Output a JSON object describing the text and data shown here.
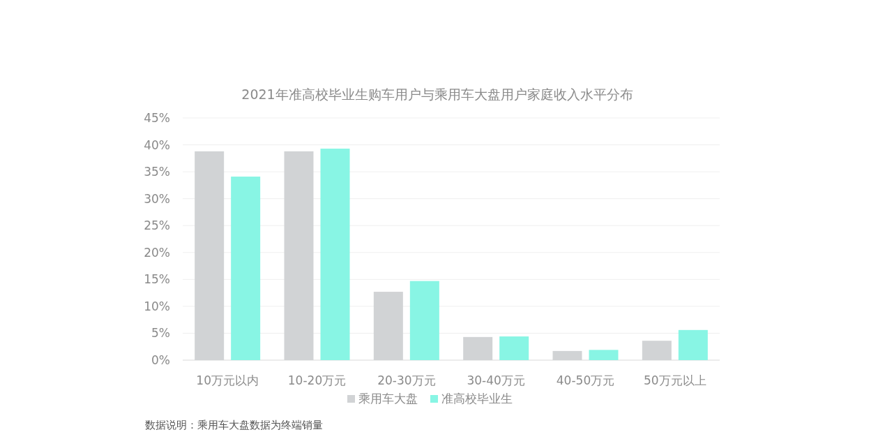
{
  "chart_data": {
    "type": "bar",
    "title": "2021年准高校毕业生购车用户与乘用车大盘用户家庭收入水平分布",
    "categories": [
      "10万元以内",
      "10-20万元",
      "20-30万元",
      "30-40万元",
      "40-50万元",
      "50万元以上"
    ],
    "series": [
      {
        "name": "乘用车大盘",
        "color": "#d1d3d5",
        "values": [
          38.8,
          38.8,
          12.7,
          4.3,
          1.7,
          3.6
        ]
      },
      {
        "name": "准高校毕业生",
        "color": "#88f5e4",
        "values": [
          34.1,
          39.3,
          14.7,
          4.4,
          1.9,
          5.6
        ]
      }
    ],
    "ylim": [
      0,
      45
    ],
    "yticks": [
      {
        "value": 0,
        "label": "0%"
      },
      {
        "value": 5,
        "label": "5%"
      },
      {
        "value": 10,
        "label": "10%"
      },
      {
        "value": 15,
        "label": "15%"
      },
      {
        "value": 20,
        "label": "20%"
      },
      {
        "value": 25,
        "label": "25%"
      },
      {
        "value": 30,
        "label": "30%"
      },
      {
        "value": 35,
        "label": "35%"
      },
      {
        "value": 40,
        "label": "40%"
      },
      {
        "value": 45,
        "label": "45%"
      }
    ],
    "grid": "y",
    "legend": "bottom",
    "annotations": [
      "数据说明：乘用车大盘数据为终端销量"
    ]
  }
}
